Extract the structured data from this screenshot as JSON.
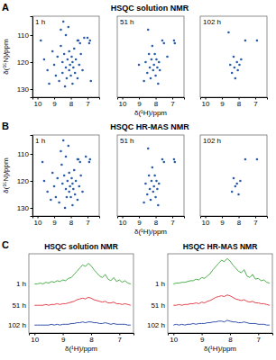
{
  "chart_data": [
    {
      "type": "scatter",
      "title": "1 h",
      "annotations": [
        "A",
        "HSQC solution NMR"
      ],
      "y_label": "δ(¹⁵N)/ppm",
      "color": "#2a5caa",
      "xlim": [
        10.3,
        6.3
      ],
      "ylim": [
        103,
        133
      ],
      "xticks": [
        10,
        9,
        8,
        7
      ],
      "yticks": [
        110,
        120,
        130
      ],
      "x": [
        9.6,
        9.4,
        9.3,
        9.1,
        9.0,
        8.9,
        8.8,
        8.7,
        8.6,
        8.6,
        8.5,
        8.5,
        8.45,
        8.4,
        8.35,
        8.3,
        8.3,
        8.25,
        8.2,
        8.15,
        8.1,
        8.1,
        8.05,
        8.0,
        7.95,
        7.9,
        7.9,
        7.85,
        7.8,
        7.75,
        7.7,
        7.6,
        7.6,
        7.5,
        7.4,
        7.3,
        7.55,
        6.85,
        7.45,
        6.9,
        7.2,
        7.0,
        9.8,
        6.8
      ],
      "values": [
        119,
        123,
        128,
        116,
        121,
        125,
        118,
        127,
        108,
        114,
        120,
        124,
        105,
        117,
        129,
        122,
        110,
        126,
        119,
        107,
        123,
        116,
        121,
        125,
        118,
        120,
        128,
        122,
        115,
        124,
        119,
        112,
        126,
        121,
        117,
        123,
        112,
        112,
        113,
        113,
        111,
        111,
        112,
        127
      ]
    },
    {
      "type": "scatter",
      "title": "51 h",
      "x_label": "δ(¹H)/ppm",
      "color": "#2a5caa",
      "tick_labels": "x",
      "xlim": [
        10.3,
        6.3
      ],
      "ylim": [
        103,
        133
      ],
      "xticks": [
        10,
        9,
        8,
        7
      ],
      "x": [
        8.6,
        8.5,
        8.45,
        8.4,
        8.35,
        8.3,
        8.25,
        8.2,
        8.15,
        8.1,
        8.05,
        8.0,
        7.95,
        7.9,
        7.85,
        7.8,
        7.75,
        7.6,
        6.9,
        7.5,
        6.85,
        8.7,
        9.0,
        7.3
      ],
      "values": [
        120,
        124,
        108,
        117,
        122,
        126,
        119,
        114,
        123,
        121,
        117,
        125,
        119,
        122,
        128,
        120,
        123,
        112,
        112,
        113,
        113,
        127,
        121,
        118
      ]
    },
    {
      "type": "scatter",
      "title": "102 h",
      "color": "#2a5caa",
      "tick_labels": "x",
      "xlim": [
        10.3,
        6.3
      ],
      "ylim": [
        103,
        133
      ],
      "xticks": [
        10,
        9,
        8,
        7
      ],
      "x": [
        8.5,
        8.4,
        8.3,
        8.25,
        8.2,
        8.1,
        8.05,
        7.95,
        7.85,
        7.6,
        6.9,
        8.6
      ],
      "values": [
        121,
        124,
        118,
        122,
        126,
        120,
        123,
        121,
        119,
        112,
        112,
        109
      ]
    },
    {
      "type": "scatter",
      "title": "1 h",
      "annotations": [
        "B",
        "HSQC HR-MAS NMR"
      ],
      "y_label": "δ(¹⁵N)/ppm",
      "color": "#2a5caa",
      "xlim": [
        10.3,
        6.3
      ],
      "ylim": [
        103,
        133
      ],
      "xticks": [
        10,
        9,
        8,
        7
      ],
      "yticks": [
        110,
        120,
        130
      ],
      "x": [
        9.6,
        9.4,
        9.2,
        9.1,
        9.0,
        8.9,
        8.8,
        8.7,
        8.6,
        8.55,
        8.5,
        8.45,
        8.4,
        8.35,
        8.3,
        8.3,
        8.25,
        8.2,
        8.15,
        8.1,
        8.1,
        8.05,
        8.0,
        7.95,
        7.9,
        7.9,
        7.85,
        7.8,
        7.75,
        7.7,
        7.6,
        7.6,
        7.5,
        7.4,
        7.3,
        7.55,
        6.85,
        7.45,
        6.9,
        7.1,
        9.7
      ],
      "values": [
        120,
        124,
        127,
        117,
        122,
        126,
        119,
        128,
        109,
        114,
        121,
        105,
        118,
        130,
        123,
        111,
        126,
        120,
        107,
        124,
        117,
        122,
        126,
        119,
        121,
        129,
        123,
        116,
        125,
        120,
        112,
        127,
        122,
        118,
        124,
        112,
        112,
        113,
        113,
        111,
        113
      ]
    },
    {
      "type": "scatter",
      "title": "51 h",
      "x_label": "δ(¹H)/ppm",
      "color": "#2a5caa",
      "tick_labels": "x",
      "xlim": [
        10.3,
        6.3
      ],
      "ylim": [
        103,
        133
      ],
      "xticks": [
        10,
        9,
        8,
        7
      ],
      "x": [
        8.6,
        8.5,
        8.45,
        8.4,
        8.35,
        8.3,
        8.25,
        8.2,
        8.15,
        8.1,
        8.05,
        8.0,
        7.95,
        7.9,
        7.85,
        7.8,
        7.6,
        6.9,
        7.5,
        6.85,
        8.7
      ],
      "values": [
        121,
        125,
        108,
        118,
        123,
        127,
        120,
        115,
        124,
        122,
        118,
        126,
        120,
        123,
        129,
        121,
        112,
        112,
        113,
        113,
        128
      ]
    },
    {
      "type": "scatter",
      "title": "102 h",
      "color": "#2a5caa",
      "tick_labels": "x",
      "xlim": [
        10.3,
        6.3
      ],
      "ylim": [
        103,
        133
      ],
      "xticks": [
        10,
        9,
        8,
        7
      ],
      "x": [
        8.4,
        8.3,
        8.2,
        8.1,
        8.0,
        7.9,
        7.6,
        6.9
      ],
      "values": [
        124,
        119,
        122,
        121,
        125,
        120,
        112,
        112
      ]
    },
    {
      "type": "line",
      "title": "HSQC solution NMR",
      "annotations": [
        "C"
      ],
      "x_label": "δ(¹H)/ppm",
      "tick_labels": "x",
      "xlim": [
        10.2,
        6.5
      ],
      "ylim": [
        0,
        100
      ],
      "xticks": [
        10,
        9,
        8,
        7
      ],
      "x": [
        10.0,
        9.9,
        9.8,
        9.7,
        9.6,
        9.5,
        9.4,
        9.3,
        9.2,
        9.1,
        9.0,
        8.9,
        8.8,
        8.7,
        8.6,
        8.5,
        8.4,
        8.3,
        8.2,
        8.1,
        8.0,
        7.9,
        7.8,
        7.7,
        7.6,
        7.5,
        7.4,
        7.3,
        7.2,
        7.1,
        7.0,
        6.9,
        6.8,
        6.7,
        6.6
      ],
      "series": [
        {
          "name": "1 h",
          "color": "#3aa63a",
          "values": [
            62,
            62,
            63,
            62,
            64,
            63,
            65,
            64,
            66,
            65,
            67,
            66,
            69,
            70,
            74,
            78,
            82,
            86,
            84,
            88,
            85,
            80,
            76,
            72,
            70,
            74,
            68,
            66,
            70,
            65,
            67,
            64,
            66,
            63,
            62
          ]
        },
        {
          "name": "51 h",
          "color": "#e0303a",
          "values": [
            35,
            35,
            35,
            35,
            36,
            35,
            36,
            36,
            37,
            36,
            37,
            37,
            38,
            39,
            40,
            42,
            43,
            44,
            43,
            45,
            44,
            42,
            41,
            40,
            39,
            40,
            38,
            38,
            39,
            37,
            37,
            36,
            37,
            36,
            35
          ]
        },
        {
          "name": "102 h",
          "color": "#1f3fa0",
          "values": [
            10,
            10,
            10,
            10,
            10,
            10,
            11,
            10,
            11,
            10,
            11,
            11,
            11,
            12,
            12,
            13,
            13,
            14,
            13,
            14,
            14,
            13,
            13,
            12,
            12,
            13,
            12,
            11,
            12,
            11,
            11,
            11,
            11,
            10,
            10
          ]
        }
      ]
    },
    {
      "type": "line",
      "title": "HSQC HR-MAS NMR",
      "x_label": "δ(¹H)/ppm",
      "tick_labels": "x",
      "xlim": [
        10.2,
        6.5
      ],
      "ylim": [
        0,
        100
      ],
      "xticks": [
        10,
        9,
        8,
        7
      ],
      "x": [
        10.0,
        9.9,
        9.8,
        9.7,
        9.6,
        9.5,
        9.4,
        9.3,
        9.2,
        9.1,
        9.0,
        8.9,
        8.8,
        8.7,
        8.6,
        8.5,
        8.4,
        8.3,
        8.2,
        8.1,
        8.0,
        7.9,
        7.8,
        7.7,
        7.6,
        7.5,
        7.4,
        7.3,
        7.2,
        7.1,
        7.0,
        6.9,
        6.8,
        6.7,
        6.6
      ],
      "series": [
        {
          "name": "1 h",
          "color": "#3aa63a",
          "values": [
            62,
            63,
            63,
            64,
            64,
            65,
            66,
            66,
            68,
            67,
            70,
            69,
            72,
            75,
            80,
            84,
            88,
            92,
            90,
            94,
            91,
            86,
            82,
            78,
            76,
            80,
            72,
            70,
            74,
            68,
            69,
            66,
            67,
            64,
            63
          ]
        },
        {
          "name": "51 h",
          "color": "#e0303a",
          "values": [
            35,
            35,
            36,
            35,
            36,
            36,
            37,
            37,
            38,
            37,
            39,
            38,
            40,
            41,
            43,
            45,
            46,
            47,
            46,
            48,
            47,
            45,
            43,
            42,
            41,
            42,
            40,
            39,
            40,
            38,
            38,
            37,
            37,
            36,
            35
          ]
        },
        {
          "name": "102 h",
          "color": "#1f3fa0",
          "values": [
            10,
            11,
            10,
            11,
            10,
            11,
            11,
            12,
            11,
            12,
            12,
            12,
            13,
            13,
            14,
            14,
            15,
            15,
            14,
            16,
            15,
            14,
            14,
            13,
            13,
            14,
            13,
            12,
            12,
            12,
            11,
            11,
            11,
            10,
            10
          ]
        }
      ]
    }
  ]
}
